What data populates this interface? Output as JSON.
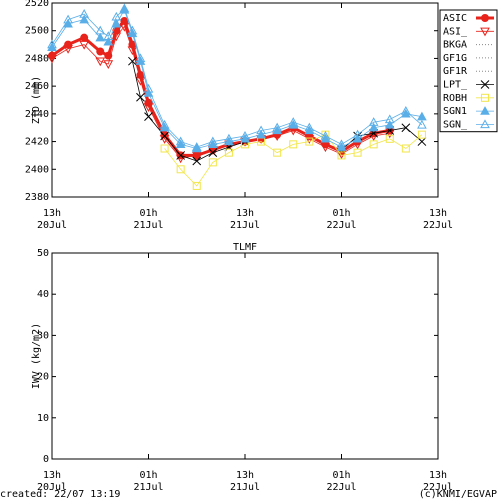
{
  "chart_data": [
    {
      "type": "line",
      "y_label": "ZTD (mm)",
      "x": [
        0,
        2,
        4,
        6,
        7,
        8,
        9,
        10,
        11,
        12,
        14,
        16,
        18,
        20,
        22,
        24,
        26,
        28,
        30,
        32,
        34,
        36,
        38,
        40,
        42,
        44,
        46
      ],
      "xlim": [
        0,
        48
      ],
      "xticks": [
        {
          "value": 0,
          "label": [
            "13h",
            "20Jul"
          ]
        },
        {
          "value": 12,
          "label": [
            "01h",
            "21Jul"
          ]
        },
        {
          "value": 24,
          "label": [
            "13h",
            "21Jul"
          ]
        },
        {
          "value": 36,
          "label": [
            "01h",
            "22Jul"
          ]
        },
        {
          "value": 48,
          "label": [
            "13h",
            "22Jul"
          ]
        }
      ],
      "ylim": [
        2380,
        2520
      ],
      "yticks": [
        2380,
        2400,
        2420,
        2440,
        2460,
        2480,
        2500,
        2520
      ],
      "legend": "right",
      "series": [
        {
          "name": "ASIC",
          "color": "#e8231b",
          "marker": "circle-filled",
          "line": "thick",
          "values": [
            2482,
            2490,
            2495,
            2485,
            2482,
            2500,
            2507,
            2490,
            2468,
            2448,
            2425,
            2410,
            2410,
            2414,
            2418,
            2420,
            2422,
            2425,
            2430,
            2424,
            2418,
            2413,
            2420,
            2426,
            2428,
            null,
            null
          ]
        },
        {
          "name": "ASI_",
          "color": "#e8231b",
          "marker": "triangle-down-open",
          "line": "thin",
          "values": [
            2480,
            2487,
            2490,
            2478,
            2476,
            2496,
            2503,
            2486,
            2464,
            2445,
            2422,
            2408,
            2410,
            2414,
            2418,
            2420,
            2422,
            2424,
            2428,
            2422,
            2416,
            2411,
            2418,
            2424,
            2426,
            null,
            null
          ]
        },
        {
          "name": "BKGA",
          "color": "#888888",
          "marker": "none",
          "line": "dotted",
          "values": [
            null,
            null,
            null,
            null,
            null,
            null,
            null,
            null,
            null,
            null,
            null,
            null,
            null,
            null,
            null,
            null,
            null,
            null,
            null,
            null,
            null,
            null,
            null,
            null,
            null,
            null,
            null
          ]
        },
        {
          "name": "GF1G",
          "color": "#888888",
          "marker": "none",
          "line": "dotted",
          "values": [
            null,
            null,
            null,
            null,
            null,
            null,
            null,
            null,
            null,
            null,
            null,
            null,
            null,
            null,
            null,
            null,
            null,
            null,
            null,
            null,
            null,
            null,
            null,
            null,
            null,
            null,
            null
          ]
        },
        {
          "name": "GF1R",
          "color": "#888888",
          "marker": "none",
          "line": "dotted",
          "values": [
            null,
            null,
            null,
            null,
            null,
            null,
            null,
            null,
            null,
            null,
            null,
            null,
            null,
            null,
            null,
            null,
            null,
            null,
            null,
            null,
            null,
            null,
            null,
            null,
            null,
            null,
            null
          ]
        },
        {
          "name": "LPT_",
          "color": "#000000",
          "marker": "x",
          "line": "thin",
          "values": [
            null,
            null,
            null,
            null,
            null,
            null,
            null,
            2478,
            2452,
            2438,
            2424,
            2410,
            2406,
            2412,
            2416,
            2420,
            null,
            null,
            null,
            null,
            null,
            2414,
            2424,
            2426,
            2428,
            2430,
            2420
          ]
        },
        {
          "name": "ROBH",
          "color": "#f2e64a",
          "marker": "square-open",
          "line": "thin",
          "values": [
            null,
            null,
            null,
            null,
            null,
            null,
            null,
            null,
            null,
            null,
            2415,
            2400,
            2388,
            2405,
            2412,
            2418,
            2420,
            2412,
            2418,
            2420,
            2425,
            2410,
            2412,
            2418,
            2422,
            2415,
            2425
          ]
        },
        {
          "name": "SGN1",
          "color": "#5aaee8",
          "marker": "triangle-up-filled",
          "line": "thin",
          "values": [
            2488,
            2505,
            2508,
            2495,
            2492,
            2505,
            2515,
            2498,
            2478,
            2455,
            2430,
            2418,
            2415,
            2418,
            2420,
            2422,
            2425,
            2428,
            2432,
            2428,
            2422,
            2416,
            2422,
            2430,
            2432,
            2440,
            2438
          ]
        },
        {
          "name": "SGN_",
          "color": "#5aaee8",
          "marker": "triangle-up-open",
          "line": "thin",
          "values": [
            2490,
            2508,
            2512,
            2500,
            2496,
            2510,
            2516,
            2500,
            2480,
            2458,
            2432,
            2420,
            2416,
            2420,
            2422,
            2424,
            2428,
            2430,
            2434,
            2430,
            2424,
            2418,
            2425,
            2434,
            2436,
            2442,
            2432
          ]
        }
      ]
    },
    {
      "type": "line",
      "title": "TLMF",
      "y_label": "IWV (kg/m2)",
      "xlim": [
        0,
        48
      ],
      "xticks": [
        {
          "value": 0,
          "label": [
            "13h",
            "20Jul"
          ]
        },
        {
          "value": 12,
          "label": [
            "01h",
            "21Jul"
          ]
        },
        {
          "value": 24,
          "label": [
            "13h",
            "21Jul"
          ]
        },
        {
          "value": 36,
          "label": [
            "01h",
            "22Jul"
          ]
        },
        {
          "value": 48,
          "label": [
            "13h",
            "22Jul"
          ]
        }
      ],
      "ylim": [
        0,
        50
      ],
      "yticks": [
        0,
        10,
        20,
        30,
        40,
        50
      ],
      "series": []
    }
  ],
  "footer": {
    "created": "created: 22/07 13:19",
    "copyright": "(c)KNMI/EGVAP"
  }
}
